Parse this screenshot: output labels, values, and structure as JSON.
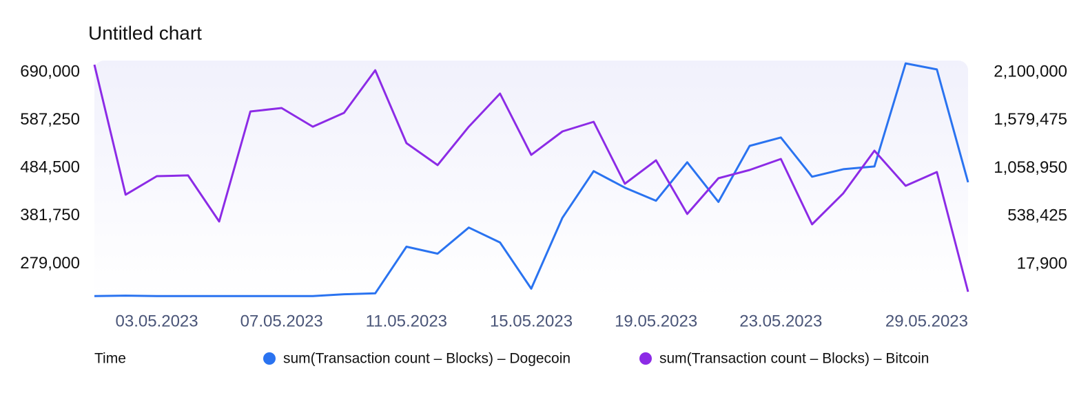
{
  "chart_data": {
    "type": "line",
    "title": "Untitled chart",
    "x_label": "Time",
    "categories": [
      null,
      null,
      "03.05.2023",
      null,
      null,
      null,
      "07.05.2023",
      null,
      null,
      null,
      "11.05.2023",
      null,
      null,
      null,
      "15.05.2023",
      null,
      null,
      null,
      "19.05.2023",
      null,
      null,
      null,
      "23.05.2023",
      null,
      null,
      null,
      null,
      null,
      "29.05.2023"
    ],
    "series": [
      {
        "name": "sum(Transaction count – Blocks) – Dogecoin",
        "color": "#2a73f0",
        "values": [
          210000,
          211000,
          210000,
          210000,
          210000,
          210000,
          210000,
          210000,
          214000,
          216000,
          316000,
          301000,
          357000,
          325000,
          226000,
          378000,
          478000,
          442500,
          414500,
          497000,
          412000,
          532000,
          550000,
          466000,
          482000,
          488000,
          709000,
          696000,
          454000
        ]
      },
      {
        "name": "sum(Transaction count – Blocks) – Bitcoin",
        "color": "#8c2be6",
        "axis": "y2",
        "values": [
          2182000,
          772000,
          973000,
          981000,
          481000,
          1675000,
          1712000,
          1510000,
          1660000,
          2122000,
          1331000,
          1093000,
          1510000,
          1869000,
          1204000,
          1458000,
          1563000,
          891000,
          1145000,
          563000,
          951000,
          1040000,
          1160000,
          451000,
          787000,
          1249000,
          869000,
          1018000,
          -281000
        ]
      }
    ],
    "ylim": [
      209000,
      715000
    ],
    "yticks": [
      {
        "value": 690000,
        "label": "690,000"
      },
      {
        "value": 587250,
        "label": "587,250"
      },
      {
        "value": 484500,
        "label": "484,500"
      },
      {
        "value": 381750,
        "label": "381,750"
      },
      {
        "value": 279000,
        "label": "279,000"
      }
    ],
    "y2lim": [
      -333000,
      2227000
    ],
    "y2ticks": [
      {
        "value": 2100000,
        "label": "2,100,000"
      },
      {
        "value": 1579475,
        "label": "1,579,475"
      },
      {
        "value": 1058950,
        "label": "1,058,950"
      },
      {
        "value": 538425,
        "label": "538,425"
      },
      {
        "value": 17900,
        "label": "17,900"
      }
    ],
    "grid": false
  }
}
